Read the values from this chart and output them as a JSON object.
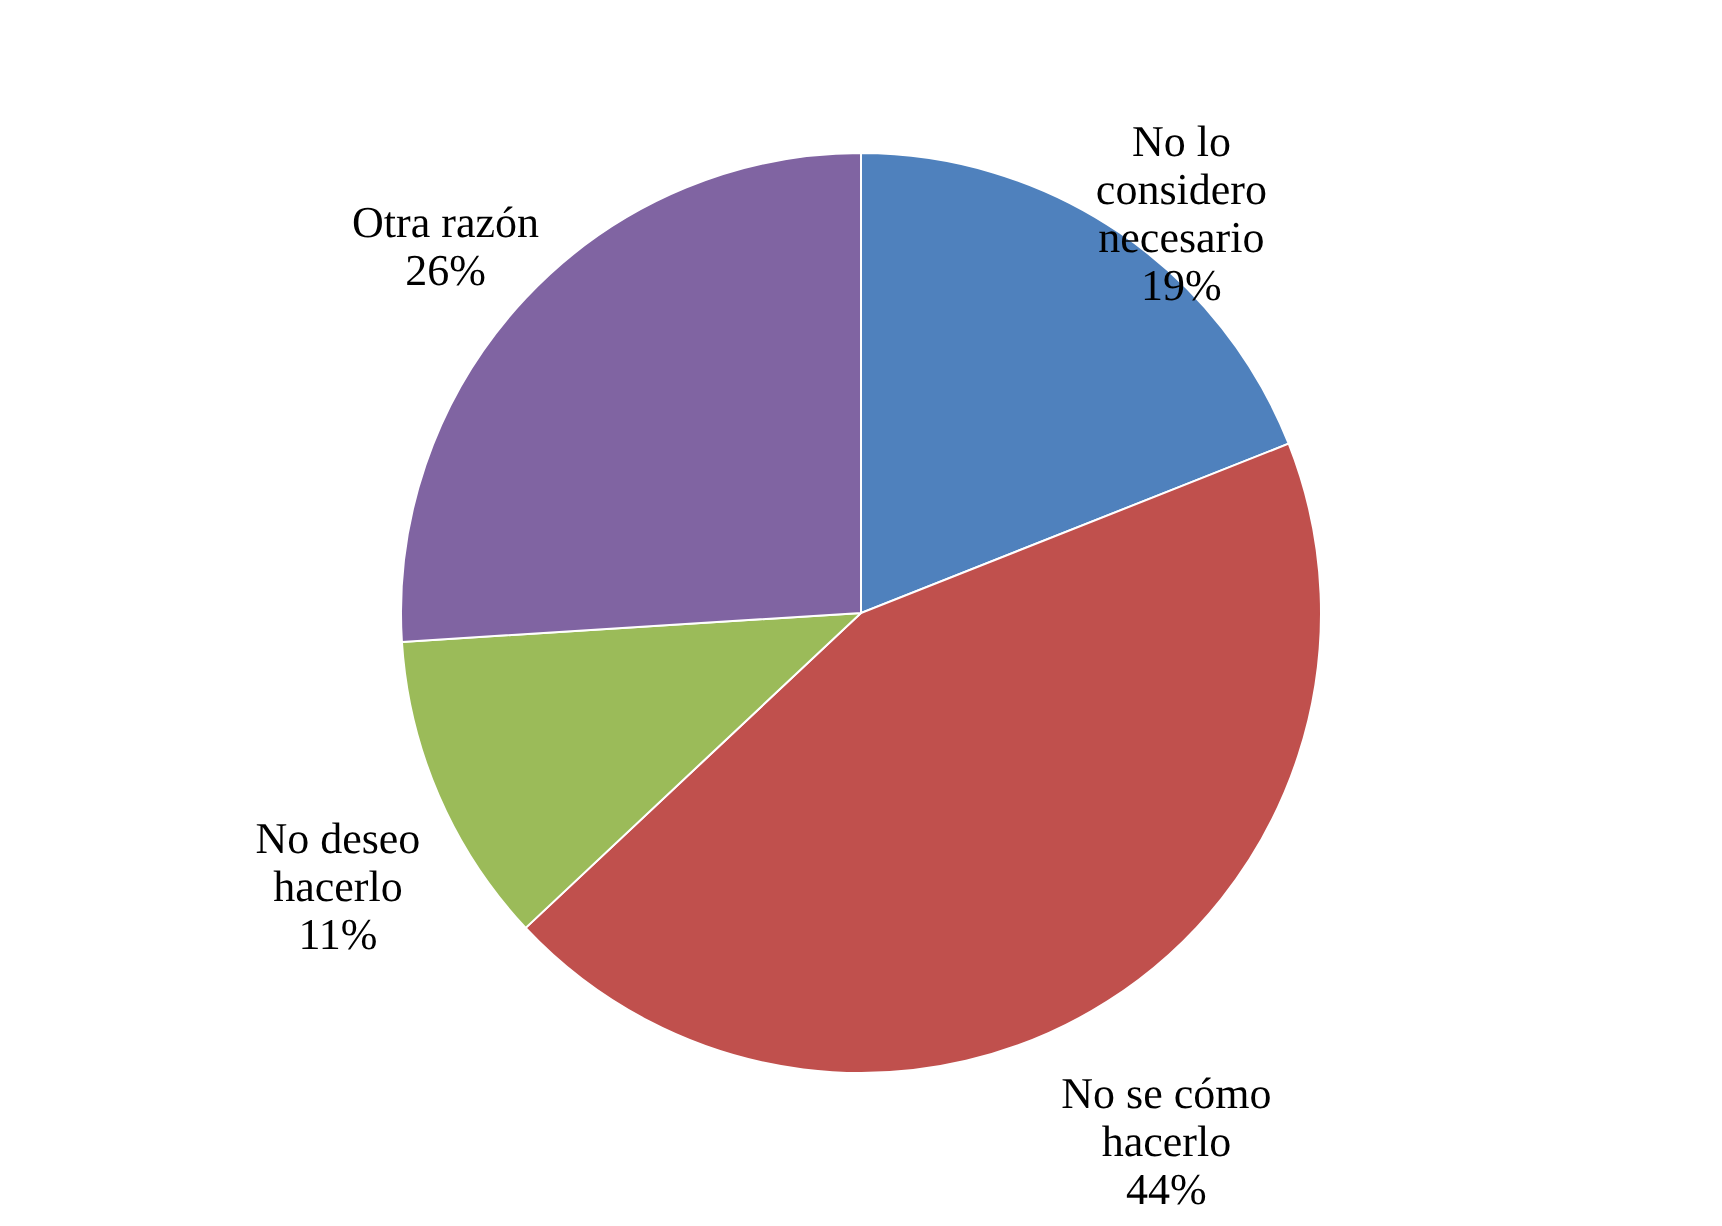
{
  "chart_data": {
    "type": "pie",
    "categories": [
      "No lo considero necesario",
      "No se cómo hacerlo",
      "No deseo hacerlo",
      "Otra razón"
    ],
    "values": [
      19,
      44,
      11,
      26
    ],
    "value_labels": [
      "19%",
      "44%",
      "11%",
      "26%"
    ],
    "colors": [
      "#4f81bd",
      "#c0504d",
      "#9bbb59",
      "#8064a2"
    ]
  }
}
